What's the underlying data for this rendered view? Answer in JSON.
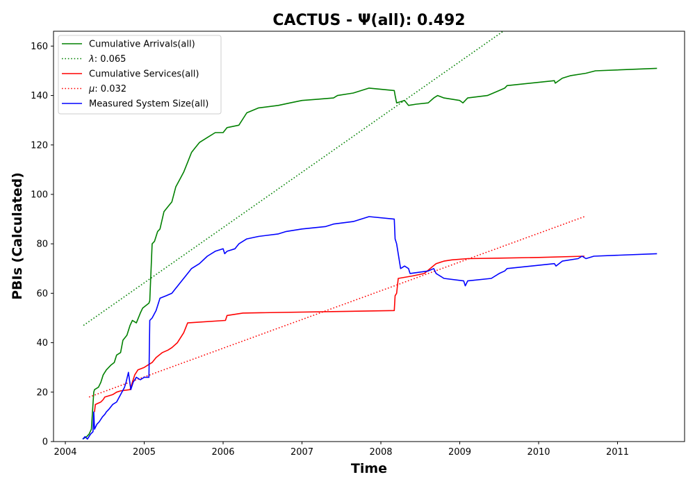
{
  "chart_data": {
    "type": "line",
    "title": "CACTUS -  Ψ(all): 0.492",
    "xlabel": "Time",
    "ylabel": "PBIs (Calculated)",
    "xlim": [
      2003.85,
      2011.85
    ],
    "ylim": [
      0,
      166
    ],
    "xticks": [
      2004,
      2005,
      2006,
      2007,
      2008,
      2009,
      2010,
      2011
    ],
    "xtick_labels": [
      "2004",
      "2005",
      "2006",
      "2007",
      "2008",
      "2009",
      "2010",
      "2011"
    ],
    "yticks": [
      0,
      20,
      40,
      60,
      80,
      100,
      120,
      140,
      160
    ],
    "ytick_labels": [
      "0",
      "20",
      "40",
      "60",
      "80",
      "100",
      "120",
      "140",
      "160"
    ],
    "grid": false,
    "legend_position": "top-left",
    "series": [
      {
        "name": "Cumulative Arrivals(all)",
        "style": "solid",
        "color": "#008000",
        "x": [
          2004.22,
          2004.27,
          2004.3,
          2004.33,
          2004.36,
          2004.37,
          2004.42,
          2004.45,
          2004.48,
          2004.52,
          2004.58,
          2004.62,
          2004.65,
          2004.7,
          2004.73,
          2004.78,
          2004.82,
          2004.85,
          2004.9,
          2004.95,
          2004.98,
          2005.06,
          2005.07,
          2005.1,
          2005.13,
          2005.17,
          2005.2,
          2005.25,
          2005.3,
          2005.35,
          2005.4,
          2005.45,
          2005.5,
          2005.55,
          2005.6,
          2005.65,
          2005.7,
          2005.8,
          2005.9,
          2006.0,
          2006.05,
          2006.2,
          2006.3,
          2006.45,
          2006.7,
          2006.85,
          2007.0,
          2007.2,
          2007.4,
          2007.45,
          2007.65,
          2007.85,
          2008.17,
          2008.18,
          2008.2,
          2008.25,
          2008.3,
          2008.35,
          2008.45,
          2008.6,
          2008.67,
          2008.72,
          2008.8,
          2009.0,
          2009.04,
          2009.1,
          2009.35,
          2009.5,
          2009.57,
          2009.6,
          2010.2,
          2010.21,
          2010.3,
          2010.4,
          2010.6,
          2010.72,
          2011.5
        ],
        "y": [
          1,
          2,
          3,
          5,
          20,
          21,
          22,
          24,
          27,
          29,
          31,
          32,
          35,
          36,
          41,
          43,
          47,
          49,
          48,
          52,
          54,
          56,
          57,
          80,
          81,
          85,
          86,
          93,
          95,
          97,
          103,
          106,
          109,
          113,
          117,
          119,
          121,
          123,
          125,
          125,
          127,
          128,
          133,
          135,
          136,
          137,
          138,
          138.5,
          139,
          140,
          141,
          143,
          142,
          140,
          137,
          137.5,
          138,
          136,
          136.5,
          137,
          139,
          140,
          139,
          138,
          137,
          139,
          140,
          142,
          143,
          144,
          146,
          145,
          147,
          148,
          149,
          150,
          151
        ]
      },
      {
        "name": "λ: 0.065",
        "label_symbol": "λ",
        "label_value": ": 0.065",
        "style": "dotted",
        "color": "#008000",
        "x": [
          2004.23,
          2009.55
        ],
        "y": [
          47,
          166
        ]
      },
      {
        "name": "Cumulative Services(all)",
        "style": "solid",
        "color": "#ff0000",
        "x": [
          2004.37,
          2004.38,
          2004.45,
          2004.48,
          2004.5,
          2004.6,
          2004.65,
          2004.7,
          2004.82,
          2004.88,
          2004.92,
          2005.0,
          2005.05,
          2005.1,
          2005.15,
          2005.23,
          2005.3,
          2005.35,
          2005.42,
          2005.5,
          2005.55,
          2006.03,
          2006.05,
          2006.25,
          2008.17,
          2008.18,
          2008.2,
          2008.22,
          2008.4,
          2008.55,
          2008.7,
          2008.8,
          2008.9,
          2009.1,
          2009.5,
          2010.0,
          2010.58
        ],
        "y": [
          12,
          15,
          16,
          17,
          18,
          19,
          20,
          20.5,
          21,
          27,
          29,
          30,
          31,
          32,
          34,
          36,
          37,
          38,
          40,
          44,
          48,
          49,
          51,
          52,
          53,
          59,
          60,
          66,
          67,
          68,
          72,
          73,
          73.5,
          74,
          74.2,
          74.5,
          75
        ]
      },
      {
        "name": "μ: 0.032",
        "label_symbol": "μ",
        "label_value": ": 0.032",
        "style": "dotted",
        "color": "#ff0000",
        "x": [
          2004.3,
          2010.58
        ],
        "y": [
          18,
          91
        ]
      },
      {
        "name": "Measured System Size(all)",
        "style": "solid",
        "color": "#0000ff",
        "x": [
          2004.22,
          2004.25,
          2004.28,
          2004.32,
          2004.35,
          2004.36,
          2004.37,
          2004.4,
          2004.43,
          2004.47,
          2004.5,
          2004.52,
          2004.55,
          2004.6,
          2004.65,
          2004.7,
          2004.75,
          2004.77,
          2004.8,
          2004.83,
          2004.86,
          2004.88,
          2004.9,
          2004.95,
          2005.0,
          2005.06,
          2005.07,
          2005.1,
          2005.15,
          2005.2,
          2005.28,
          2005.35,
          2005.4,
          2005.45,
          2005.5,
          2005.55,
          2005.6,
          2005.7,
          2005.8,
          2005.9,
          2006.0,
          2006.02,
          2006.05,
          2006.15,
          2006.2,
          2006.3,
          2006.45,
          2006.7,
          2006.8,
          2007.0,
          2007.3,
          2007.4,
          2007.65,
          2007.85,
          2008.17,
          2008.18,
          2008.2,
          2008.25,
          2008.3,
          2008.35,
          2008.37,
          2008.6,
          2008.67,
          2008.7,
          2008.8,
          2009.05,
          2009.07,
          2009.1,
          2009.4,
          2009.5,
          2009.57,
          2009.6,
          2010.2,
          2010.22,
          2010.3,
          2010.5,
          2010.55,
          2010.6,
          2010.7,
          2011.5
        ],
        "y": [
          1,
          2,
          1,
          3,
          4,
          12,
          5,
          7,
          8,
          10,
          11,
          12,
          13,
          15,
          16,
          19,
          22,
          24,
          28,
          21,
          24,
          25,
          26,
          25,
          26,
          26,
          49,
          50,
          53,
          58,
          59,
          60,
          62,
          64,
          66,
          68,
          70,
          72,
          75,
          77,
          78,
          76,
          77,
          78,
          80,
          82,
          83,
          84,
          85,
          86,
          87,
          88,
          89,
          91,
          90,
          82,
          80,
          70,
          71,
          70,
          68,
          69,
          70,
          68,
          66,
          65,
          63,
          65,
          66,
          68,
          69,
          70,
          72,
          71,
          73,
          74,
          75,
          74,
          75,
          76
        ]
      }
    ]
  }
}
